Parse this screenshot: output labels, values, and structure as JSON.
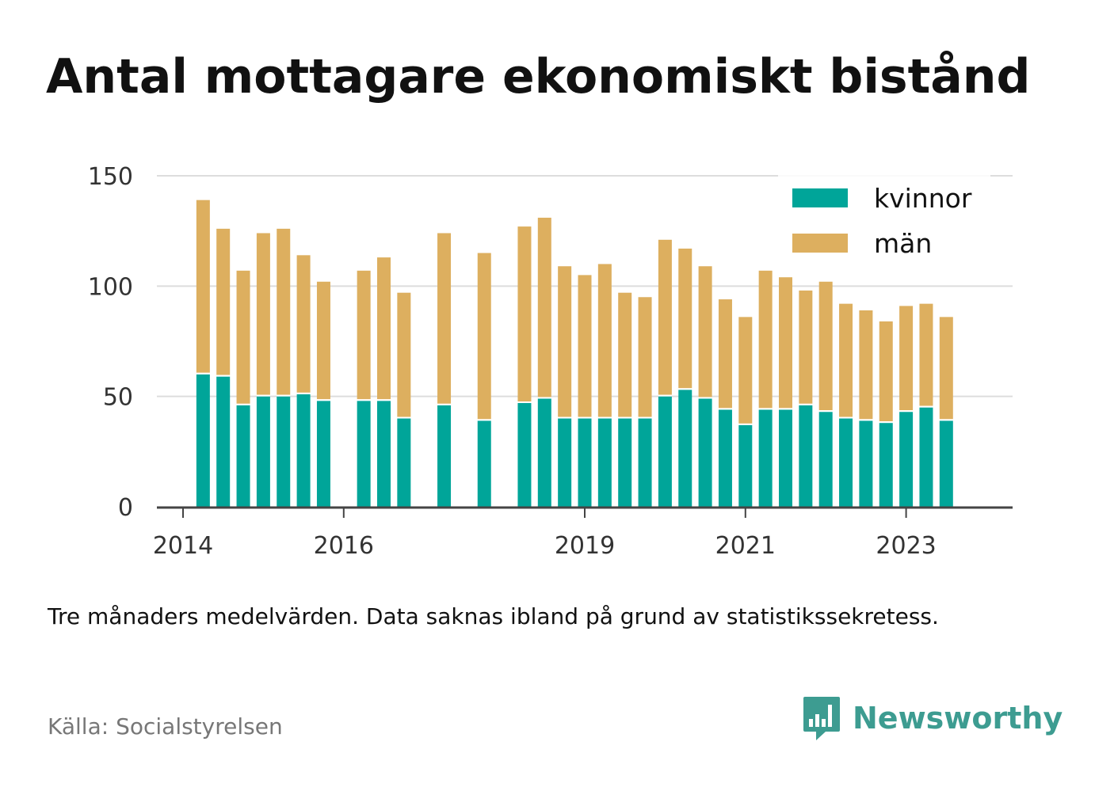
{
  "title": "Antal mottagare ekonomiskt bistånd",
  "note": "Tre månaders medelvärden. Data saknas ibland på grund av statistikssekretess.",
  "source": "Källa: Socialstyrelsen",
  "brand": {
    "name": "Newsworthy",
    "icon": "newsworthy-logo-icon"
  },
  "colors": {
    "kvinnor": "#00a599",
    "man": "#ddaf5f",
    "grid": "#dddddd",
    "axis": "#444444"
  },
  "chart_data": {
    "type": "bar",
    "stacked": true,
    "ylim": [
      0,
      150
    ],
    "yticks": [
      0,
      50,
      100,
      150
    ],
    "xtick_labels": [
      "2014",
      "2016",
      "2019",
      "2021",
      "2023"
    ],
    "xtick_index": [
      0,
      8,
      20,
      28,
      36
    ],
    "grid": true,
    "legend_position": "top-right",
    "series": [
      {
        "name": "kvinnor",
        "color": "#00a599",
        "values": [
          null,
          60,
          59,
          46,
          50,
          50,
          51,
          48,
          null,
          48,
          48,
          40,
          null,
          46,
          null,
          39,
          null,
          47,
          49,
          40,
          40,
          40,
          40,
          40,
          50,
          53,
          49,
          44,
          37,
          44,
          44,
          46,
          43,
          40,
          39,
          38,
          43,
          45,
          39
        ]
      },
      {
        "name": "män",
        "color": "#ddaf5f",
        "values": [
          null,
          79,
          67,
          61,
          74,
          76,
          63,
          54,
          null,
          59,
          65,
          57,
          null,
          78,
          null,
          76,
          null,
          80,
          82,
          69,
          65,
          70,
          57,
          55,
          71,
          64,
          60,
          50,
          49,
          63,
          60,
          52,
          59,
          52,
          50,
          46,
          48,
          47,
          47
        ]
      }
    ]
  }
}
